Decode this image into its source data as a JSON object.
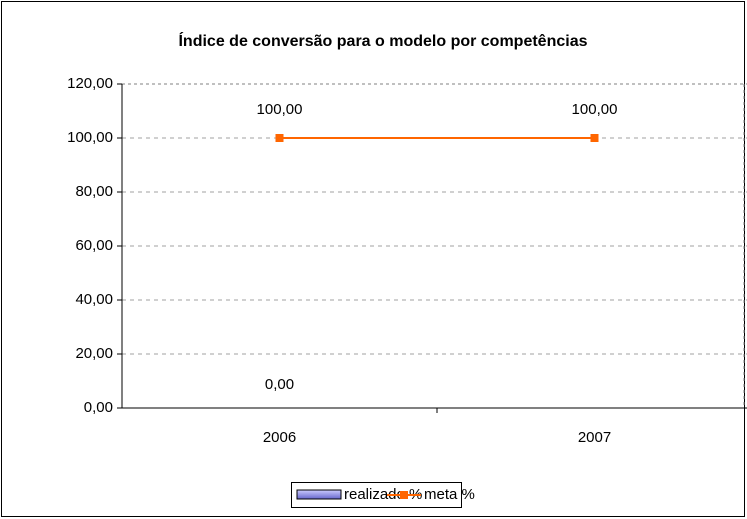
{
  "chart_data": {
    "type": "bar-line",
    "title": "Índice de conversão para o modelo por competências",
    "categories": [
      "2006",
      "2007"
    ],
    "series": [
      {
        "name": "realizado %",
        "type": "bar",
        "color": "#9999ff",
        "values": [
          0,
          null
        ],
        "value_labels": [
          "0,00",
          null
        ]
      },
      {
        "name": "meta %",
        "type": "line",
        "color": "#ff6600",
        "values": [
          100,
          100
        ],
        "value_labels": [
          "100,00",
          "100,00"
        ]
      }
    ],
    "ylim": [
      0,
      120
    ],
    "yticks": [
      {
        "value": 0,
        "label": "0,00"
      },
      {
        "value": 20,
        "label": "20,00"
      },
      {
        "value": 40,
        "label": "40,00"
      },
      {
        "value": 60,
        "label": "60,00"
      },
      {
        "value": 80,
        "label": "80,00"
      },
      {
        "value": 100,
        "label": "100,00"
      },
      {
        "value": 120,
        "label": "120,00"
      }
    ],
    "grid": true,
    "legend": "bottom"
  }
}
